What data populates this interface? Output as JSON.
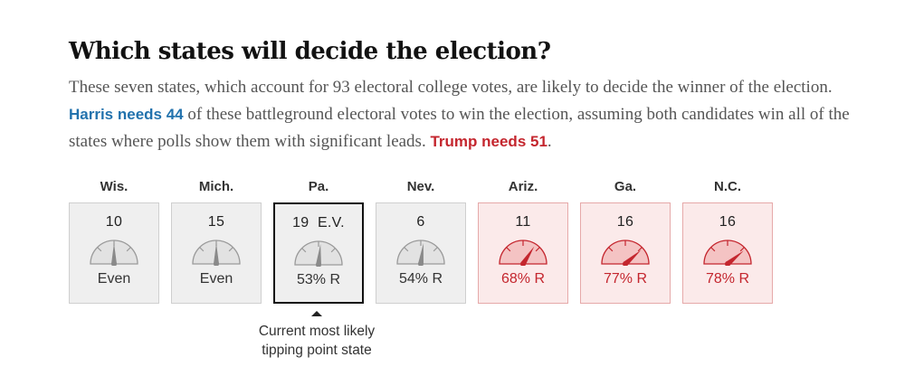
{
  "header": {
    "title": "Which states will decide the election?",
    "intro_1": "These seven states, which account for 93 electoral college votes, are likely to decide the winner of the election. ",
    "harris_need": "Harris needs 44",
    "intro_2": " of these battleground electoral votes to win the election, assuming both candidates win all of the states where polls show them with significant leads. ",
    "trump_need": "Trump needs 51",
    "intro_3": "."
  },
  "colors": {
    "neutral": "#efefef",
    "red": "#c4262e",
    "blue": "#2272ad"
  },
  "states": [
    {
      "abbr": "Wis.",
      "ev": "10",
      "chance": "Even",
      "lean": "even",
      "probability": 0.5
    },
    {
      "abbr": "Mich.",
      "ev": "15",
      "chance": "Even",
      "lean": "even",
      "probability": 0.5
    },
    {
      "abbr": "Pa.",
      "ev": "19  E.V.",
      "chance": "53% R",
      "lean": "even",
      "probability": 0.53,
      "tipping": true
    },
    {
      "abbr": "Nev.",
      "ev": "6",
      "chance": "54% R",
      "lean": "even",
      "probability": 0.54
    },
    {
      "abbr": "Ariz.",
      "ev": "11",
      "chance": "68% R",
      "lean": "red",
      "probability": 0.68
    },
    {
      "abbr": "Ga.",
      "ev": "16",
      "chance": "77% R",
      "lean": "red",
      "probability": 0.77
    },
    {
      "abbr": "N.C.",
      "ev": "16",
      "chance": "78% R",
      "lean": "red",
      "probability": 0.78
    }
  ],
  "tipping_note": {
    "line1": "Current most likely",
    "line2": "tipping point state"
  }
}
